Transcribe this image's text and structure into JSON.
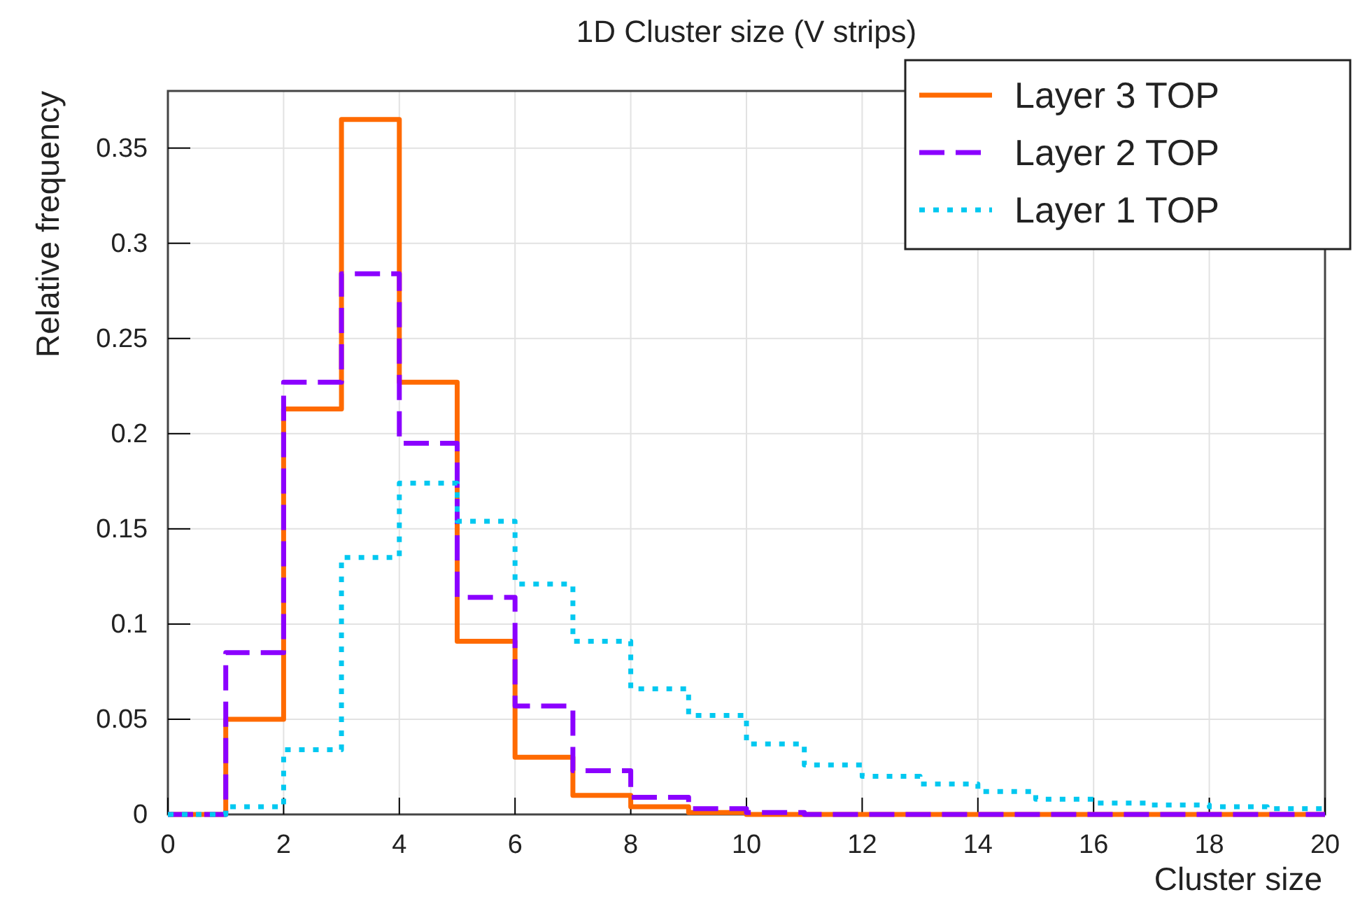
{
  "chart_data": {
    "type": "histogram",
    "title": "1D Cluster size (V strips)",
    "xlabel": "Cluster size",
    "ylabel": "Relative frequency",
    "bins": [
      0,
      1,
      2,
      3,
      4,
      5,
      6,
      7,
      8,
      9,
      10,
      11,
      12,
      13,
      14,
      15,
      16,
      17,
      18,
      19,
      20
    ],
    "series": [
      {
        "name": "Layer 3 TOP",
        "color": "#ff6a00",
        "line_style": "solid",
        "values": [
          0,
          0.05,
          0.213,
          0.365,
          0.227,
          0.091,
          0.03,
          0.01,
          0.004,
          0.001,
          0,
          0,
          0,
          0,
          0,
          0,
          0,
          0,
          0,
          0
        ]
      },
      {
        "name": "Layer 2 TOP",
        "color": "#8b00ff",
        "line_style": "dashed",
        "values": [
          0,
          0.085,
          0.227,
          0.284,
          0.195,
          0.114,
          0.057,
          0.023,
          0.009,
          0.003,
          0.001,
          0,
          0,
          0,
          0,
          0,
          0,
          0,
          0,
          0
        ]
      },
      {
        "name": "Layer 1 TOP",
        "color": "#00c8f0",
        "line_style": "dotted",
        "values": [
          0,
          0.004,
          0.034,
          0.135,
          0.174,
          0.154,
          0.121,
          0.091,
          0.066,
          0.052,
          0.037,
          0.026,
          0.02,
          0.016,
          0.012,
          0.008,
          0.006,
          0.005,
          0.004,
          0.003
        ]
      }
    ],
    "xlim": [
      0,
      20
    ],
    "xticks": [
      0,
      2,
      4,
      6,
      8,
      10,
      12,
      14,
      16,
      18,
      20
    ],
    "ylim": [
      0,
      0.38
    ],
    "yticks": [
      0,
      0.05,
      0.1,
      0.15,
      0.2,
      0.25,
      0.3,
      0.35
    ],
    "grid": true,
    "legend": "top right"
  }
}
